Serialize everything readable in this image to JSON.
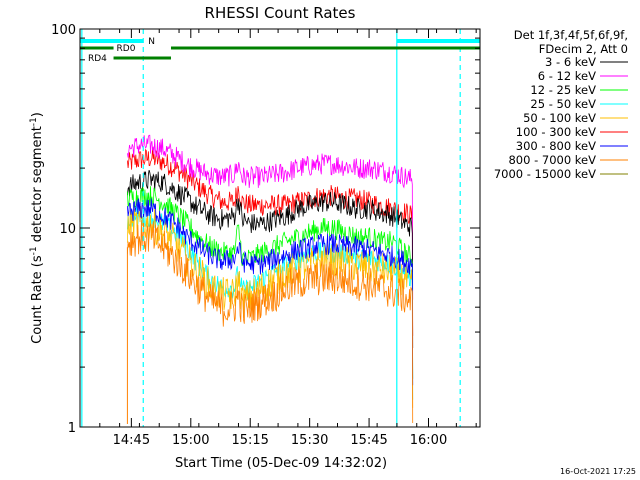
{
  "chart_data": {
    "type": "line",
    "title": "RHESSI Count Rates",
    "xlabel": "Start Time (05-Dec-09 14:32:02)",
    "ylabel_main": "Count Rate (s",
    "ylabel_sup1": "-1",
    "ylabel_mid": " detector segment",
    "ylabel_sup2": "-1",
    "ylabel_end": ")",
    "yscale": "log",
    "ylim": [
      1,
      100
    ],
    "xlim": [
      "14:32:02",
      "16:13:00"
    ],
    "x_ticks": [
      {
        "label": "14:45",
        "t": "14:45"
      },
      {
        "label": "15:00",
        "t": "15:00"
      },
      {
        "label": "15:15",
        "t": "15:15"
      },
      {
        "label": "15:30",
        "t": "15:30"
      },
      {
        "label": "15:45",
        "t": "15:45"
      },
      {
        "label": "16:00",
        "t": "16:00"
      }
    ],
    "y_ticks": [
      {
        "label": "1",
        "v": 1
      },
      {
        "label": "10",
        "v": 10
      },
      {
        "label": "100",
        "v": 100
      }
    ],
    "legend": {
      "header1": "Det 1f,3f,4f,5f,6f,9f,",
      "header2": "FDecim 2, Att 0",
      "placement": "right"
    },
    "series": [
      {
        "name": "3 - 6 keV",
        "color": "#000000",
        "x": [
          "14:44",
          "14:47",
          "14:50",
          "14:53",
          "14:56",
          "14:59",
          "15:02",
          "15:05",
          "15:08",
          "15:11",
          "15:12",
          "15:13",
          "15:15",
          "15:18",
          "15:21",
          "15:24",
          "15:27",
          "15:30",
          "15:33",
          "15:36",
          "15:39",
          "15:42",
          "15:45",
          "15:48",
          "15:51",
          "15:54",
          "15:56"
        ],
        "y": [
          16,
          17,
          17.5,
          17,
          15.5,
          14,
          12.5,
          11.5,
          11,
          11.5,
          14,
          11,
          10.5,
          10.5,
          11,
          11.5,
          12.5,
          13,
          13.5,
          13.5,
          13,
          12.5,
          12.5,
          12,
          11.5,
          10.5,
          10
        ]
      },
      {
        "name": "6 - 12 keV",
        "color": "#ff00ff",
        "x": [
          "14:44",
          "14:47",
          "14:50",
          "14:53",
          "14:56",
          "14:59",
          "15:02",
          "15:05",
          "15:08",
          "15:11",
          "15:12",
          "15:13",
          "15:15",
          "15:18",
          "15:21",
          "15:24",
          "15:27",
          "15:30",
          "15:33",
          "15:36",
          "15:39",
          "15:42",
          "15:45",
          "15:48",
          "15:51",
          "15:54",
          "15:56"
        ],
        "y": [
          25,
          26,
          26,
          25,
          23,
          21,
          19.5,
          18.5,
          18,
          18.5,
          21,
          18,
          18,
          18,
          18.5,
          19,
          20,
          20.5,
          21,
          21,
          20.5,
          20,
          20,
          19.5,
          19,
          18,
          17.5
        ]
      },
      {
        "name": "12 - 25 keV",
        "color": "#00ff00",
        "x": [
          "14:44",
          "14:47",
          "14:50",
          "14:53",
          "14:56",
          "14:59",
          "15:02",
          "15:05",
          "15:08",
          "15:11",
          "15:12",
          "15:13",
          "15:15",
          "15:18",
          "15:21",
          "15:24",
          "15:27",
          "15:30",
          "15:33",
          "15:36",
          "15:39",
          "15:42",
          "15:45",
          "15:48",
          "15:51",
          "15:54",
          "15:56"
        ],
        "y": [
          14,
          14.5,
          14.5,
          13.5,
          12,
          10.5,
          9,
          8,
          7.5,
          7.5,
          10,
          7,
          7,
          7.5,
          8,
          8.5,
          9,
          9.5,
          10,
          10,
          9.5,
          9,
          9,
          8.5,
          8.5,
          7.5,
          7
        ]
      },
      {
        "name": "25 - 50 keV",
        "color": "#00ffff",
        "x": [
          "14:44",
          "14:47",
          "14:50",
          "14:53",
          "14:56",
          "14:59",
          "15:02",
          "15:05",
          "15:08",
          "15:11",
          "15:12",
          "15:13",
          "15:15",
          "15:18",
          "15:21",
          "15:24",
          "15:27",
          "15:30",
          "15:33",
          "15:36",
          "15:39",
          "15:42",
          "15:45",
          "15:48",
          "15:51",
          "15:54",
          "15:56"
        ],
        "y": [
          11,
          11.5,
          11.5,
          10.5,
          9.5,
          8,
          6.5,
          5.5,
          5,
          5,
          6,
          4.8,
          5,
          5.5,
          6,
          6.5,
          7,
          7.5,
          7.5,
          7.5,
          7.5,
          7,
          7,
          6.8,
          6.5,
          6,
          5.5
        ]
      },
      {
        "name": "50 - 100 keV",
        "color": "#ffbf00",
        "x": [
          "14:44",
          "14:47",
          "14:50",
          "14:53",
          "14:56",
          "14:59",
          "15:02",
          "15:05",
          "15:08",
          "15:11",
          "15:12",
          "15:13",
          "15:15",
          "15:18",
          "15:21",
          "15:24",
          "15:27",
          "15:30",
          "15:33",
          "15:36",
          "15:39",
          "15:42",
          "15:45",
          "15:48",
          "15:51",
          "15:54",
          "15:56"
        ],
        "y": [
          10,
          10.5,
          10.5,
          9.5,
          8.5,
          7,
          6,
          5,
          4.6,
          4.6,
          5.5,
          4.3,
          4.5,
          5,
          5.5,
          6,
          6.3,
          6.5,
          6.8,
          6.8,
          6.7,
          6.5,
          6.3,
          6.2,
          6,
          5.5,
          5
        ]
      },
      {
        "name": "100 - 300 keV",
        "color": "#ff0000",
        "x": [
          "14:44",
          "14:47",
          "14:50",
          "14:53",
          "14:56",
          "14:59",
          "15:02",
          "15:05",
          "15:08",
          "15:11",
          "15:12",
          "15:13",
          "15:15",
          "15:18",
          "15:21",
          "15:24",
          "15:27",
          "15:30",
          "15:33",
          "15:36",
          "15:39",
          "15:42",
          "15:45",
          "15:48",
          "15:51",
          "15:54",
          "15:56"
        ],
        "y": [
          21,
          22,
          22.5,
          21.5,
          20,
          18,
          16,
          14.5,
          13.5,
          13.5,
          16,
          13.5,
          13,
          13,
          13,
          13,
          13.5,
          14,
          14.5,
          14.5,
          14,
          14,
          13.5,
          13,
          12.5,
          12,
          11.5
        ]
      },
      {
        "name": "300 - 800 keV",
        "color": "#0000ff",
        "x": [
          "14:44",
          "14:47",
          "14:50",
          "14:53",
          "14:56",
          "14:59",
          "15:02",
          "15:05",
          "15:08",
          "15:11",
          "15:12",
          "15:13",
          "15:15",
          "15:18",
          "15:21",
          "15:24",
          "15:27",
          "15:30",
          "15:33",
          "15:36",
          "15:39",
          "15:42",
          "15:45",
          "15:48",
          "15:51",
          "15:54",
          "15:56"
        ],
        "y": [
          12,
          12.5,
          12.5,
          11.5,
          10.5,
          9,
          8,
          7.2,
          6.8,
          7,
          8,
          6.8,
          6.6,
          6.6,
          7,
          7.3,
          7.8,
          8,
          8.3,
          8.3,
          8.1,
          8,
          7.8,
          7.5,
          7.2,
          6.8,
          6.5
        ]
      },
      {
        "name": "800 - 7000 keV",
        "color": "#ff8000",
        "x": [
          "14:44",
          "14:47",
          "14:50",
          "14:53",
          "14:56",
          "14:59",
          "15:02",
          "15:05",
          "15:08",
          "15:11",
          "15:12",
          "15:13",
          "15:15",
          "15:18",
          "15:21",
          "15:24",
          "15:27",
          "15:30",
          "15:33",
          "15:36",
          "15:39",
          "15:42",
          "15:45",
          "15:48",
          "15:51",
          "15:54",
          "15:56"
        ],
        "y": [
          8.5,
          9,
          9,
          8,
          7,
          6,
          5,
          4.3,
          3.9,
          4,
          4.6,
          3.8,
          4,
          4.3,
          4.6,
          5,
          5.3,
          5.5,
          5.6,
          5.6,
          5.5,
          5.3,
          5.2,
          5,
          4.8,
          4.5,
          4.2
        ]
      },
      {
        "name": "7000 - 15000 keV",
        "color": "#808000",
        "x": [],
        "y": []
      }
    ],
    "attenuator_bar": {
      "label": "N",
      "color": "#00ffff",
      "segments": [
        [
          "14:32:02",
          "14:48:00"
        ],
        [
          "15:52:00",
          "16:13:00"
        ]
      ]
    },
    "rd_bars": [
      {
        "label": "RD0",
        "color": "#008000",
        "segments": [
          [
            "14:32:02",
            "14:40:30"
          ],
          [
            "14:55:00",
            "16:13:00"
          ]
        ]
      },
      {
        "label": "RD4",
        "color": "#008000",
        "segments": [
          [
            "14:40:30",
            "14:55:00"
          ]
        ]
      }
    ],
    "solid_vlines": {
      "color": "#00ffff",
      "times": [
        "14:32:30",
        "15:52:00"
      ]
    },
    "dashed_vlines": {
      "color": "#00ffff",
      "times": [
        "14:48:00",
        "16:08:00"
      ]
    },
    "data_start": "14:44",
    "data_end": "15:56",
    "timestamp": "16-Oct-2021 17:25"
  }
}
